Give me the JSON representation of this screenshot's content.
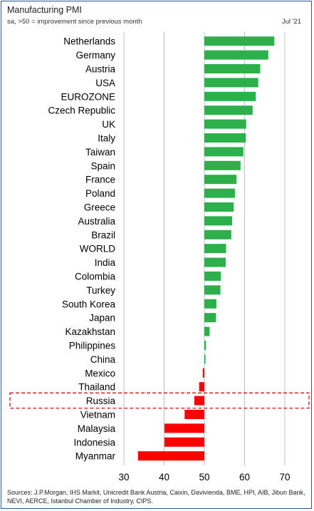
{
  "header": {
    "title": "Manufacturing PMI",
    "subtitle": "sa, >50 = improvement since previous month",
    "date": "Jul '21"
  },
  "sources": "Sources: J.P.Morgan, IHS Markit, Unicredit Bank Austria, Caixin, Davivienda, BME, HPI, AIB, Jibun Bank, NEVI, AERCE, Istanbul Chamber of Industry, CIPS.",
  "colors": {
    "positive": "#2db04b",
    "negative": "#ff0000",
    "grid": "#bfbfbf",
    "highlight_border": "#c00000"
  },
  "chart_data": {
    "type": "bar",
    "orientation": "horizontal",
    "title": "Manufacturing PMI",
    "subtitle": "sa, >50 = improvement since previous month",
    "baseline": 50,
    "xlim": [
      30,
      75
    ],
    "xticks": [
      30,
      40,
      50,
      60,
      70
    ],
    "grid": true,
    "highlighted_category": "Russia",
    "categories": [
      "Netherlands",
      "Germany",
      "Austria",
      "USA",
      "EUROZONE",
      "Czech Republic",
      "UK",
      "Italy",
      "Taiwan",
      "Spain",
      "France",
      "Poland",
      "Greece",
      "Australia",
      "Brazil",
      "WORLD",
      "India",
      "Colombia",
      "Turkey",
      "South Korea",
      "Japan",
      "Kazakhstan",
      "Philippines",
      "China",
      "Mexico",
      "Thailand",
      "Russia",
      "Vietnam",
      "Malaysia",
      "Indonesia",
      "Myanmar"
    ],
    "values": [
      67.4,
      65.9,
      63.9,
      63.4,
      62.8,
      62.0,
      60.4,
      60.3,
      59.7,
      59.0,
      58.0,
      57.6,
      57.3,
      56.9,
      56.7,
      55.4,
      55.3,
      54.1,
      54.0,
      53.0,
      52.9,
      51.3,
      50.4,
      50.3,
      49.6,
      48.7,
      47.5,
      45.1,
      40.1,
      40.1,
      33.5
    ]
  }
}
